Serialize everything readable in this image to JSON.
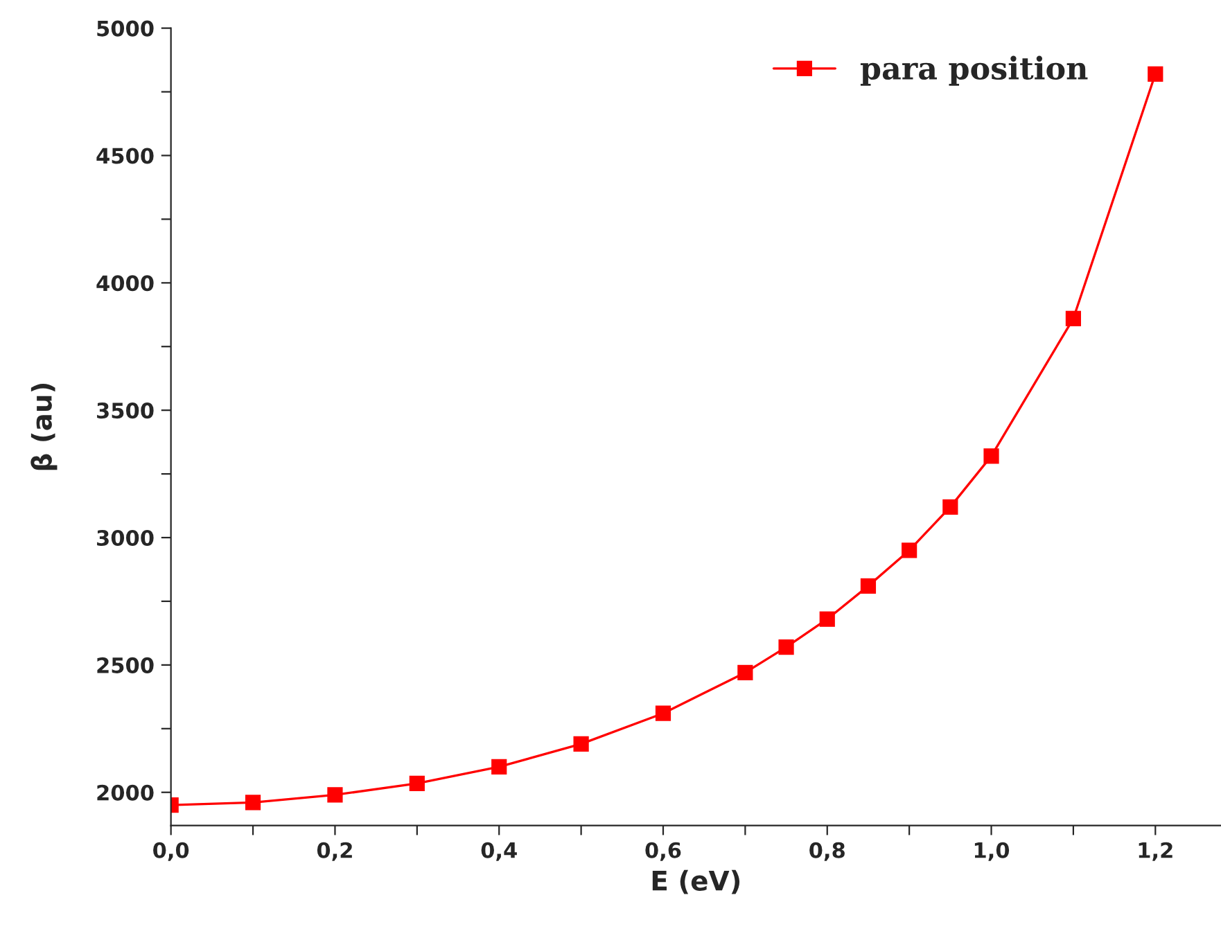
{
  "chart_data": {
    "type": "line",
    "xlabel": "E (eV)",
    "ylabel": "β (au)",
    "x": [
      0,
      0.1,
      0.2,
      0.3,
      0.4,
      0.5,
      0.6,
      0.7,
      0.75,
      0.8,
      0.85,
      0.9,
      0.95,
      1.0,
      1.1,
      1.2
    ],
    "series": [
      {
        "name": "para position",
        "color": "#ff0000",
        "values": [
          1950,
          1960,
          1990,
          2035,
          2100,
          2190,
          2310,
          2470,
          2570,
          2680,
          2810,
          2950,
          3120,
          3320,
          3860,
          4820
        ]
      }
    ],
    "xlim": [
      0,
      1.28
    ],
    "ylim": [
      1870,
      5000
    ],
    "xticks": [
      {
        "value": 0,
        "label": "0,0"
      },
      {
        "value": 0.1,
        "label": null
      },
      {
        "value": 0.2,
        "label": "0,2"
      },
      {
        "value": 0.3,
        "label": null
      },
      {
        "value": 0.4,
        "label": "0,4"
      },
      {
        "value": 0.5,
        "label": null
      },
      {
        "value": 0.6,
        "label": "0,6"
      },
      {
        "value": 0.7,
        "label": null
      },
      {
        "value": 0.8,
        "label": "0,8"
      },
      {
        "value": 0.9,
        "label": null
      },
      {
        "value": 1.0,
        "label": "1,0"
      },
      {
        "value": 1.1,
        "label": null
      },
      {
        "value": 1.2,
        "label": "1,2"
      }
    ],
    "yticks": [
      2000,
      {
        "value": 2250,
        "label": null
      },
      2500,
      {
        "value": 2750,
        "label": null
      },
      3000,
      {
        "value": 3250,
        "label": null
      },
      3500,
      {
        "value": 3750,
        "label": null
      },
      4000,
      {
        "value": 4250,
        "label": null
      },
      4500,
      {
        "value": 4750,
        "label": null
      },
      5000
    ],
    "marker": "square",
    "line_style": "solid",
    "legend": "top right",
    "grid": false
  }
}
